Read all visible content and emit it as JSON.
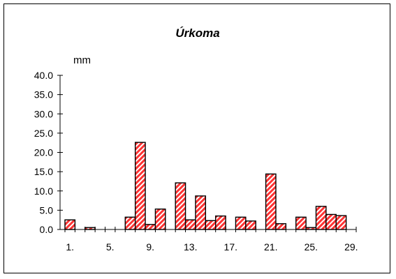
{
  "chart_data": {
    "type": "bar",
    "title": "Úrkoma",
    "ylabel": "mm",
    "xlabel": "",
    "ylim": [
      0,
      40
    ],
    "yticks": [
      "0.0",
      "5.0",
      "10.0",
      "15.0",
      "20.0",
      "25.0",
      "30.0",
      "35.0",
      "40.0"
    ],
    "xtick_labels": [
      "1.",
      "5.",
      "9.",
      "13.",
      "17.",
      "21.",
      "25.",
      "29."
    ],
    "x_labeled_days": [
      1,
      5,
      9,
      13,
      17,
      21,
      25,
      29
    ],
    "days": [
      1,
      2,
      3,
      4,
      5,
      6,
      7,
      8,
      9,
      10,
      11,
      12,
      13,
      14,
      15,
      16,
      17,
      18,
      19,
      20,
      21,
      22,
      23,
      24,
      25,
      26,
      27,
      28,
      29
    ],
    "values": [
      2.5,
      0,
      0.5,
      0,
      0,
      0,
      3.2,
      22.6,
      1.3,
      5.3,
      0,
      12.1,
      2.5,
      8.7,
      2.3,
      3.5,
      0,
      3.2,
      2.2,
      0,
      14.4,
      1.5,
      0,
      3.2,
      0.5,
      6.0,
      3.9,
      3.6,
      0
    ],
    "bar_fill": "#ff3333",
    "bar_hatch": "#ffffff",
    "bar_stroke": "#000000",
    "grid": false
  }
}
